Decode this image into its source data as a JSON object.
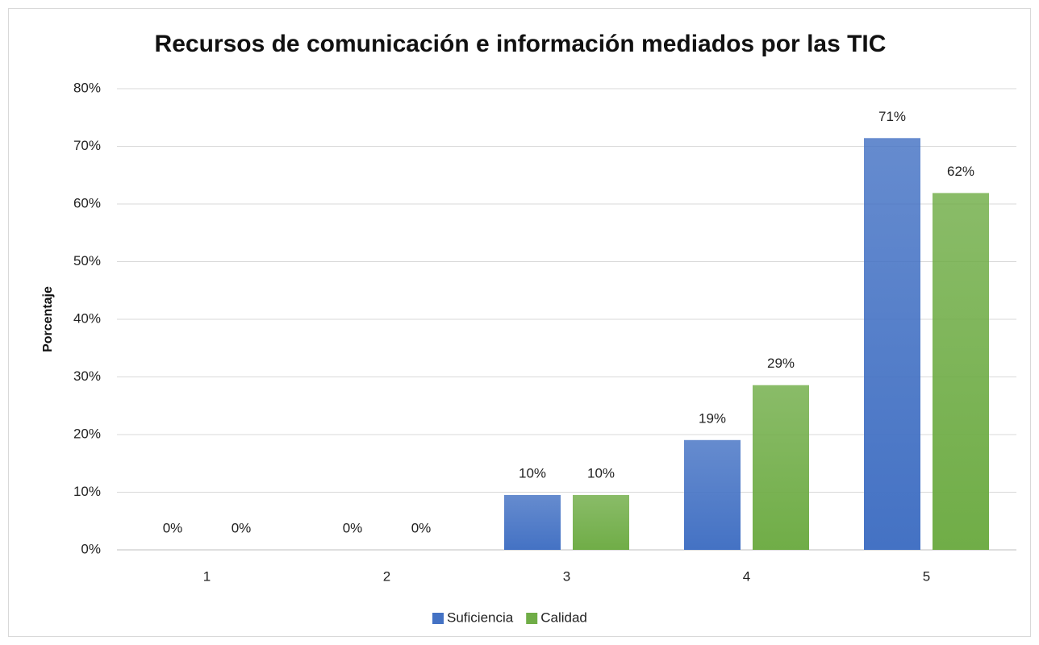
{
  "chart_data": {
    "type": "bar",
    "title": "Recursos de comunicación e información mediados por las TIC",
    "ylabel": "Porcentaje",
    "categories": [
      "1",
      "2",
      "3",
      "4",
      "5"
    ],
    "series": [
      {
        "name": "Suficiencia",
        "color": "#4472c4",
        "values": [
          0,
          0,
          9.52,
          19.05,
          71.43
        ],
        "value_labels": [
          "0%",
          "0%",
          "10%",
          "19%",
          "71%"
        ]
      },
      {
        "name": "Calidad",
        "color": "#70ad47",
        "values": [
          0,
          0,
          9.52,
          28.57,
          61.9
        ],
        "value_labels": [
          "0%",
          "0%",
          "10%",
          "29%",
          "62%"
        ]
      }
    ],
    "ylim": [
      0,
      80
    ],
    "yticks": [
      {
        "value": 0,
        "label": "0%"
      },
      {
        "value": 10,
        "label": "10%"
      },
      {
        "value": 20,
        "label": "20%"
      },
      {
        "value": 30,
        "label": "30%"
      },
      {
        "value": 40,
        "label": "40%"
      },
      {
        "value": 50,
        "label": "50%"
      },
      {
        "value": 60,
        "label": "60%"
      },
      {
        "value": 70,
        "label": "70%"
      },
      {
        "value": 80,
        "label": "80%"
      }
    ],
    "grid": true,
    "legend": "bottom"
  }
}
